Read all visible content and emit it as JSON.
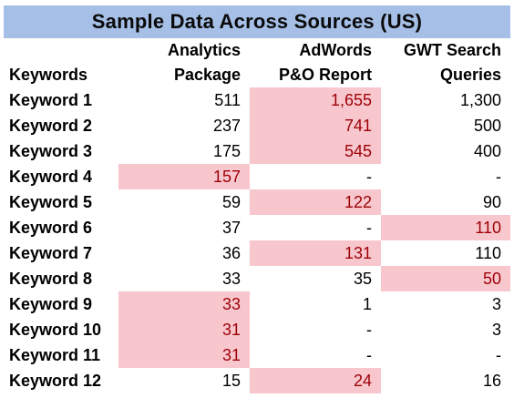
{
  "title": "Sample Data Across Sources (US)",
  "columns": {
    "keywords": "Keywords",
    "analytics": [
      "Analytics",
      "Package"
    ],
    "adwords": [
      "AdWords",
      "P&O Report"
    ],
    "gwt": [
      "GWT Search",
      "Queries"
    ]
  },
  "highlight_color": "#f8c7ce",
  "highlight_text_color": "#9c0006",
  "header_color": "#a6bfe6",
  "rows": [
    {
      "keyword": "Keyword 1",
      "analytics": "511",
      "adwords": "1,655",
      "gwt": "1,300",
      "hl": [
        false,
        true,
        false
      ]
    },
    {
      "keyword": "Keyword 2",
      "analytics": "237",
      "adwords": "741",
      "gwt": "500",
      "hl": [
        false,
        true,
        false
      ]
    },
    {
      "keyword": "Keyword 3",
      "analytics": "175",
      "adwords": "545",
      "gwt": "400",
      "hl": [
        false,
        true,
        false
      ]
    },
    {
      "keyword": "Keyword 4",
      "analytics": "157",
      "adwords": "-",
      "gwt": "-",
      "hl": [
        true,
        false,
        false
      ]
    },
    {
      "keyword": "Keyword 5",
      "analytics": "59",
      "adwords": "122",
      "gwt": "90",
      "hl": [
        false,
        true,
        false
      ]
    },
    {
      "keyword": "Keyword 6",
      "analytics": "37",
      "adwords": "-",
      "gwt": "110",
      "hl": [
        false,
        false,
        true
      ]
    },
    {
      "keyword": "Keyword 7",
      "analytics": "36",
      "adwords": "131",
      "gwt": "110",
      "hl": [
        false,
        true,
        false
      ]
    },
    {
      "keyword": "Keyword 8",
      "analytics": "33",
      "adwords": "35",
      "gwt": "50",
      "hl": [
        false,
        false,
        true
      ]
    },
    {
      "keyword": "Keyword 9",
      "analytics": "33",
      "adwords": "1",
      "gwt": "3",
      "hl": [
        true,
        false,
        false
      ]
    },
    {
      "keyword": "Keyword 10",
      "analytics": "31",
      "adwords": "-",
      "gwt": "3",
      "hl": [
        true,
        false,
        false
      ]
    },
    {
      "keyword": "Keyword 11",
      "analytics": "31",
      "adwords": "-",
      "gwt": "-",
      "hl": [
        true,
        false,
        false
      ]
    },
    {
      "keyword": "Keyword 12",
      "analytics": "15",
      "adwords": "24",
      "gwt": "16",
      "hl": [
        false,
        true,
        false
      ]
    }
  ]
}
